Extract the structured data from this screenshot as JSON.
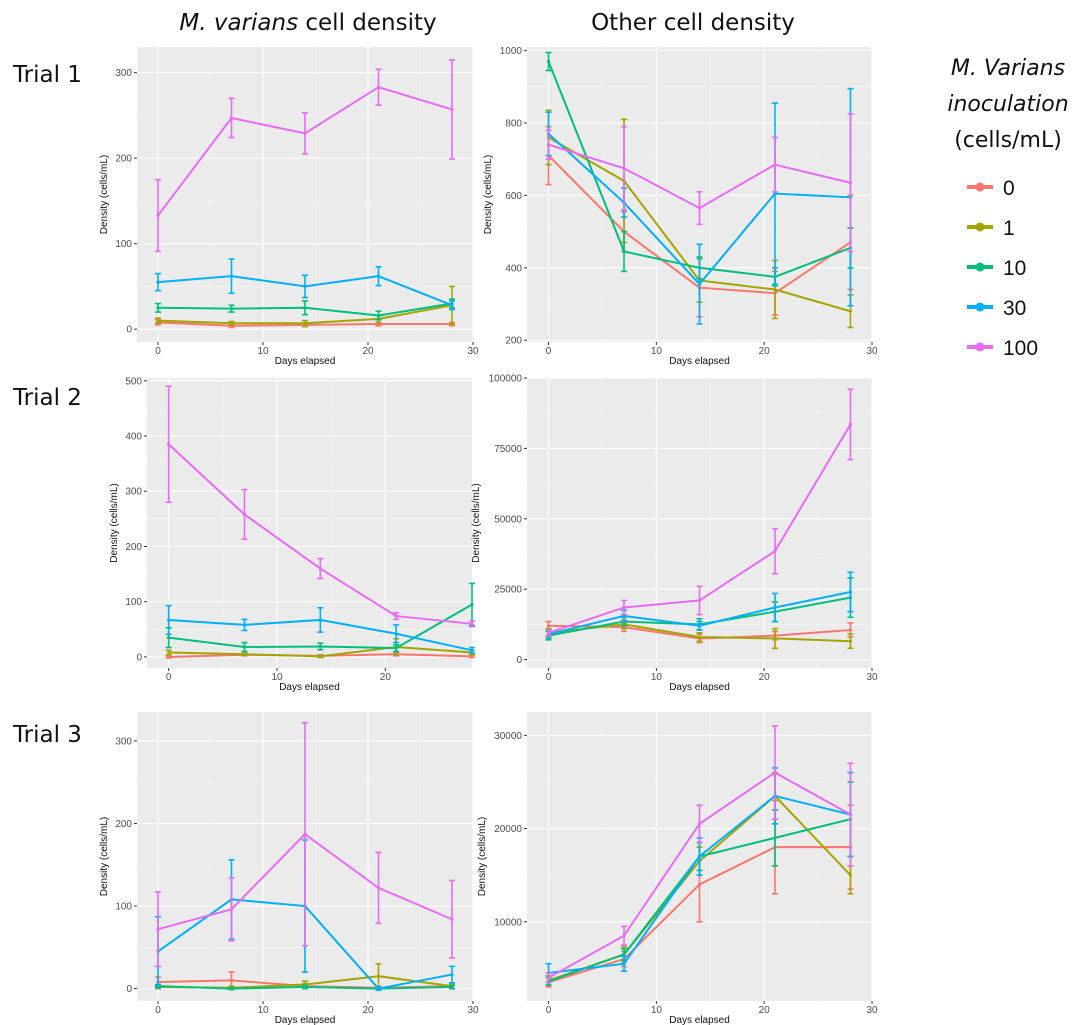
{
  "column_headers": {
    "left_italic": "M. varians",
    "left_rest": " cell density",
    "right": "Other cell density"
  },
  "trial_labels": [
    "Trial 1",
    "Trial 2",
    "Trial 3"
  ],
  "legend": {
    "title_line1": "M. Varians",
    "title_line2": "inoculation",
    "title_line3": "(cells/mL)",
    "entries": [
      "0",
      "1",
      "10",
      "30",
      "100"
    ]
  },
  "colors": {
    "0": "#F8766D",
    "1": "#A3A500",
    "10": "#00BF7D",
    "30": "#00B0F6",
    "100": "#E76BF3",
    "panel_bg": "#EBEBEB",
    "grid": "#FFFFFF"
  },
  "chart_data": [
    {
      "type": "line",
      "trial": "Trial 1",
      "column": "M. varians cell density",
      "xlabel": "Days elapsed",
      "ylabel": "Density (cells/mL)",
      "xlim": [
        -2,
        30
      ],
      "ylim": [
        -15,
        330
      ],
      "x_ticks": [
        0,
        10,
        20,
        30
      ],
      "y_ticks": [
        0,
        100,
        200,
        300
      ],
      "series": [
        {
          "name": "0",
          "x": [
            0,
            7,
            14,
            21,
            28
          ],
          "y": [
            8,
            4,
            5,
            6,
            6
          ],
          "err": [
            3,
            2,
            2,
            2,
            2
          ]
        },
        {
          "name": "1",
          "x": [
            0,
            7,
            14,
            21,
            28
          ],
          "y": [
            10,
            7,
            7,
            12,
            28
          ],
          "err": [
            3,
            2,
            3,
            4,
            22
          ]
        },
        {
          "name": "10",
          "x": [
            0,
            7,
            14,
            21,
            28
          ],
          "y": [
            25,
            24,
            25,
            16,
            30
          ],
          "err": [
            5,
            4,
            8,
            5,
            5
          ]
        },
        {
          "name": "30",
          "x": [
            0,
            7,
            14,
            21,
            28
          ],
          "y": [
            55,
            62,
            50,
            62,
            28
          ],
          "err": [
            10,
            20,
            13,
            11,
            5
          ]
        },
        {
          "name": "100",
          "x": [
            0,
            7,
            14,
            21,
            28
          ],
          "y": [
            133,
            247,
            229,
            283,
            257
          ],
          "err": [
            42,
            23,
            24,
            21,
            58
          ]
        }
      ]
    },
    {
      "type": "line",
      "trial": "Trial 1",
      "column": "Other cell density",
      "xlabel": "Days elapsed",
      "ylabel": "Density (cells/mL)",
      "xlim": [
        -2,
        30
      ],
      "ylim": [
        195,
        1010
      ],
      "x_ticks": [
        0,
        10,
        20,
        30
      ],
      "y_ticks": [
        200,
        400,
        600,
        800,
        1000
      ],
      "series": [
        {
          "name": "0",
          "x": [
            0,
            7,
            14,
            21,
            28
          ],
          "y": [
            710,
            500,
            345,
            330,
            470
          ],
          "err": [
            80,
            55,
            80,
            60,
            130
          ]
        },
        {
          "name": "1",
          "x": [
            0,
            7,
            14,
            21,
            28
          ],
          "y": [
            760,
            640,
            365,
            340,
            280
          ],
          "err": [
            75,
            170,
            60,
            80,
            45
          ]
        },
        {
          "name": "10",
          "x": [
            0,
            7,
            14,
            21,
            28
          ],
          "y": [
            970,
            445,
            400,
            375,
            455
          ],
          "err": [
            25,
            55,
            30,
            25,
            55
          ]
        },
        {
          "name": "30",
          "x": [
            0,
            7,
            14,
            21,
            28
          ],
          "y": [
            770,
            580,
            355,
            605,
            595
          ],
          "err": [
            60,
            40,
            110,
            250,
            300
          ]
        },
        {
          "name": "100",
          "x": [
            0,
            7,
            14,
            21,
            28
          ],
          "y": [
            740,
            675,
            565,
            685,
            635
          ],
          "err": [
            40,
            115,
            45,
            75,
            190
          ]
        }
      ]
    },
    {
      "type": "line",
      "trial": "Trial 2",
      "column": "M. varians cell density",
      "xlabel": "Days elapsed",
      "ylabel": "Density (cells/mL)",
      "xlim": [
        -2,
        28
      ],
      "ylim": [
        -20,
        505
      ],
      "x_ticks": [
        0,
        10,
        20
      ],
      "y_ticks": [
        0,
        100,
        200,
        300,
        400,
        500
      ],
      "series": [
        {
          "name": "0",
          "x": [
            0,
            7,
            14,
            21,
            28
          ],
          "y": [
            0,
            4,
            2,
            5,
            1
          ],
          "err": [
            2,
            2,
            2,
            3,
            2
          ]
        },
        {
          "name": "1",
          "x": [
            0,
            7,
            14,
            21,
            28
          ],
          "y": [
            8,
            5,
            1,
            18,
            8
          ],
          "err": [
            4,
            2,
            2,
            15,
            4
          ]
        },
        {
          "name": "10",
          "x": [
            0,
            7,
            14,
            21,
            28
          ],
          "y": [
            35,
            18,
            19,
            16,
            95
          ],
          "err": [
            18,
            8,
            6,
            6,
            38
          ]
        },
        {
          "name": "30",
          "x": [
            0,
            7,
            14,
            21,
            28
          ],
          "y": [
            67,
            58,
            67,
            42,
            12
          ],
          "err": [
            26,
            10,
            22,
            16,
            5
          ]
        },
        {
          "name": "100",
          "x": [
            0,
            7,
            14,
            21,
            28
          ],
          "y": [
            385,
            258,
            160,
            74,
            60
          ],
          "err": [
            105,
            45,
            18,
            6,
            5
          ]
        }
      ]
    },
    {
      "type": "line",
      "trial": "Trial 2",
      "column": "Other cell density",
      "xlabel": "Days elapsed",
      "ylabel": "Density (cells/mL)",
      "xlim": [
        -2,
        30
      ],
      "ylim": [
        -3000,
        100000
      ],
      "x_ticks": [
        0,
        10,
        20,
        30
      ],
      "y_ticks": [
        0,
        25000,
        50000,
        75000,
        100000
      ],
      "series": [
        {
          "name": "0",
          "x": [
            0,
            7,
            14,
            21,
            28
          ],
          "y": [
            12000,
            11500,
            7500,
            8500,
            10500
          ],
          "err": [
            1500,
            1500,
            1500,
            1500,
            2500
          ]
        },
        {
          "name": "1",
          "x": [
            0,
            7,
            14,
            21,
            28
          ],
          "y": [
            9500,
            12500,
            8000,
            7500,
            6500
          ],
          "err": [
            1500,
            1500,
            1500,
            3500,
            2500
          ]
        },
        {
          "name": "10",
          "x": [
            0,
            7,
            14,
            21,
            28
          ],
          "y": [
            8500,
            13500,
            12500,
            17000,
            22000
          ],
          "err": [
            1500,
            1500,
            2000,
            3500,
            7000
          ]
        },
        {
          "name": "30",
          "x": [
            0,
            7,
            14,
            21,
            28
          ],
          "y": [
            9000,
            15500,
            12000,
            18500,
            24000
          ],
          "err": [
            1500,
            2000,
            1500,
            5000,
            7000
          ]
        },
        {
          "name": "100",
          "x": [
            0,
            7,
            14,
            21,
            28
          ],
          "y": [
            9500,
            18500,
            21000,
            38500,
            83500
          ],
          "err": [
            1000,
            2500,
            5000,
            8000,
            12500
          ]
        }
      ]
    },
    {
      "type": "line",
      "trial": "Trial 3",
      "column": "M. varians cell density",
      "xlabel": "Days elapsed",
      "ylabel": "Density (cells/mL)",
      "xlim": [
        -2,
        30
      ],
      "ylim": [
        -15,
        335
      ],
      "x_ticks": [
        0,
        10,
        20,
        30
      ],
      "y_ticks": [
        0,
        100,
        200,
        300
      ],
      "series": [
        {
          "name": "0",
          "x": [
            0,
            7,
            14,
            21,
            28
          ],
          "y": [
            8,
            10,
            3,
            1,
            3
          ],
          "err": [
            6,
            10,
            3,
            2,
            3
          ]
        },
        {
          "name": "1",
          "x": [
            0,
            7,
            14,
            21,
            28
          ],
          "y": [
            2,
            1,
            5,
            15,
            3
          ],
          "err": [
            2,
            2,
            4,
            15,
            3
          ]
        },
        {
          "name": "10",
          "x": [
            0,
            7,
            14,
            21,
            28
          ],
          "y": [
            3,
            0,
            2,
            0,
            2
          ],
          "err": [
            2,
            1,
            2,
            1,
            2
          ]
        },
        {
          "name": "30",
          "x": [
            0,
            7,
            14,
            21,
            28
          ],
          "y": [
            45,
            108,
            100,
            0,
            17
          ],
          "err": [
            42,
            48,
            80,
            2,
            10
          ]
        },
        {
          "name": "100",
          "x": [
            0,
            7,
            14,
            21,
            28
          ],
          "y": [
            72,
            96,
            187,
            122,
            84
          ],
          "err": [
            45,
            38,
            135,
            43,
            47
          ]
        }
      ]
    },
    {
      "type": "line",
      "trial": "Trial 3",
      "column": "Other cell density",
      "xlabel": "Days elapsed",
      "ylabel": "Density (cells/mL)",
      "xlim": [
        -2,
        30
      ],
      "ylim": [
        1500,
        32500
      ],
      "x_ticks": [
        0,
        10,
        20,
        30
      ],
      "y_ticks": [
        10000,
        20000,
        30000
      ],
      "series": [
        {
          "name": "0",
          "x": [
            0,
            7,
            14,
            21,
            28
          ],
          "y": [
            3500,
            6000,
            14000,
            18000,
            18000
          ],
          "err": [
            500,
            800,
            4000,
            5000,
            4500
          ]
        },
        {
          "name": "1",
          "x": [
            0,
            7,
            14,
            21,
            28
          ],
          "y": [
            3700,
            6500,
            16500,
            23500,
            15000
          ],
          "err": [
            500,
            800,
            1500,
            2500,
            2000
          ]
        },
        {
          "name": "10",
          "x": [
            0,
            7,
            14,
            21,
            28
          ],
          "y": [
            3600,
            6500,
            17000,
            19000,
            21000
          ],
          "err": [
            400,
            600,
            1500,
            3000,
            4000
          ]
        },
        {
          "name": "30",
          "x": [
            0,
            7,
            14,
            21,
            28
          ],
          "y": [
            4500,
            5500,
            17000,
            23500,
            21500
          ],
          "err": [
            1000,
            800,
            2000,
            3000,
            4500
          ]
        },
        {
          "name": "100",
          "x": [
            0,
            7,
            14,
            21,
            28
          ],
          "y": [
            4000,
            8500,
            20500,
            26000,
            21500
          ],
          "err": [
            500,
            1000,
            2000,
            5000,
            5500
          ]
        }
      ]
    }
  ]
}
